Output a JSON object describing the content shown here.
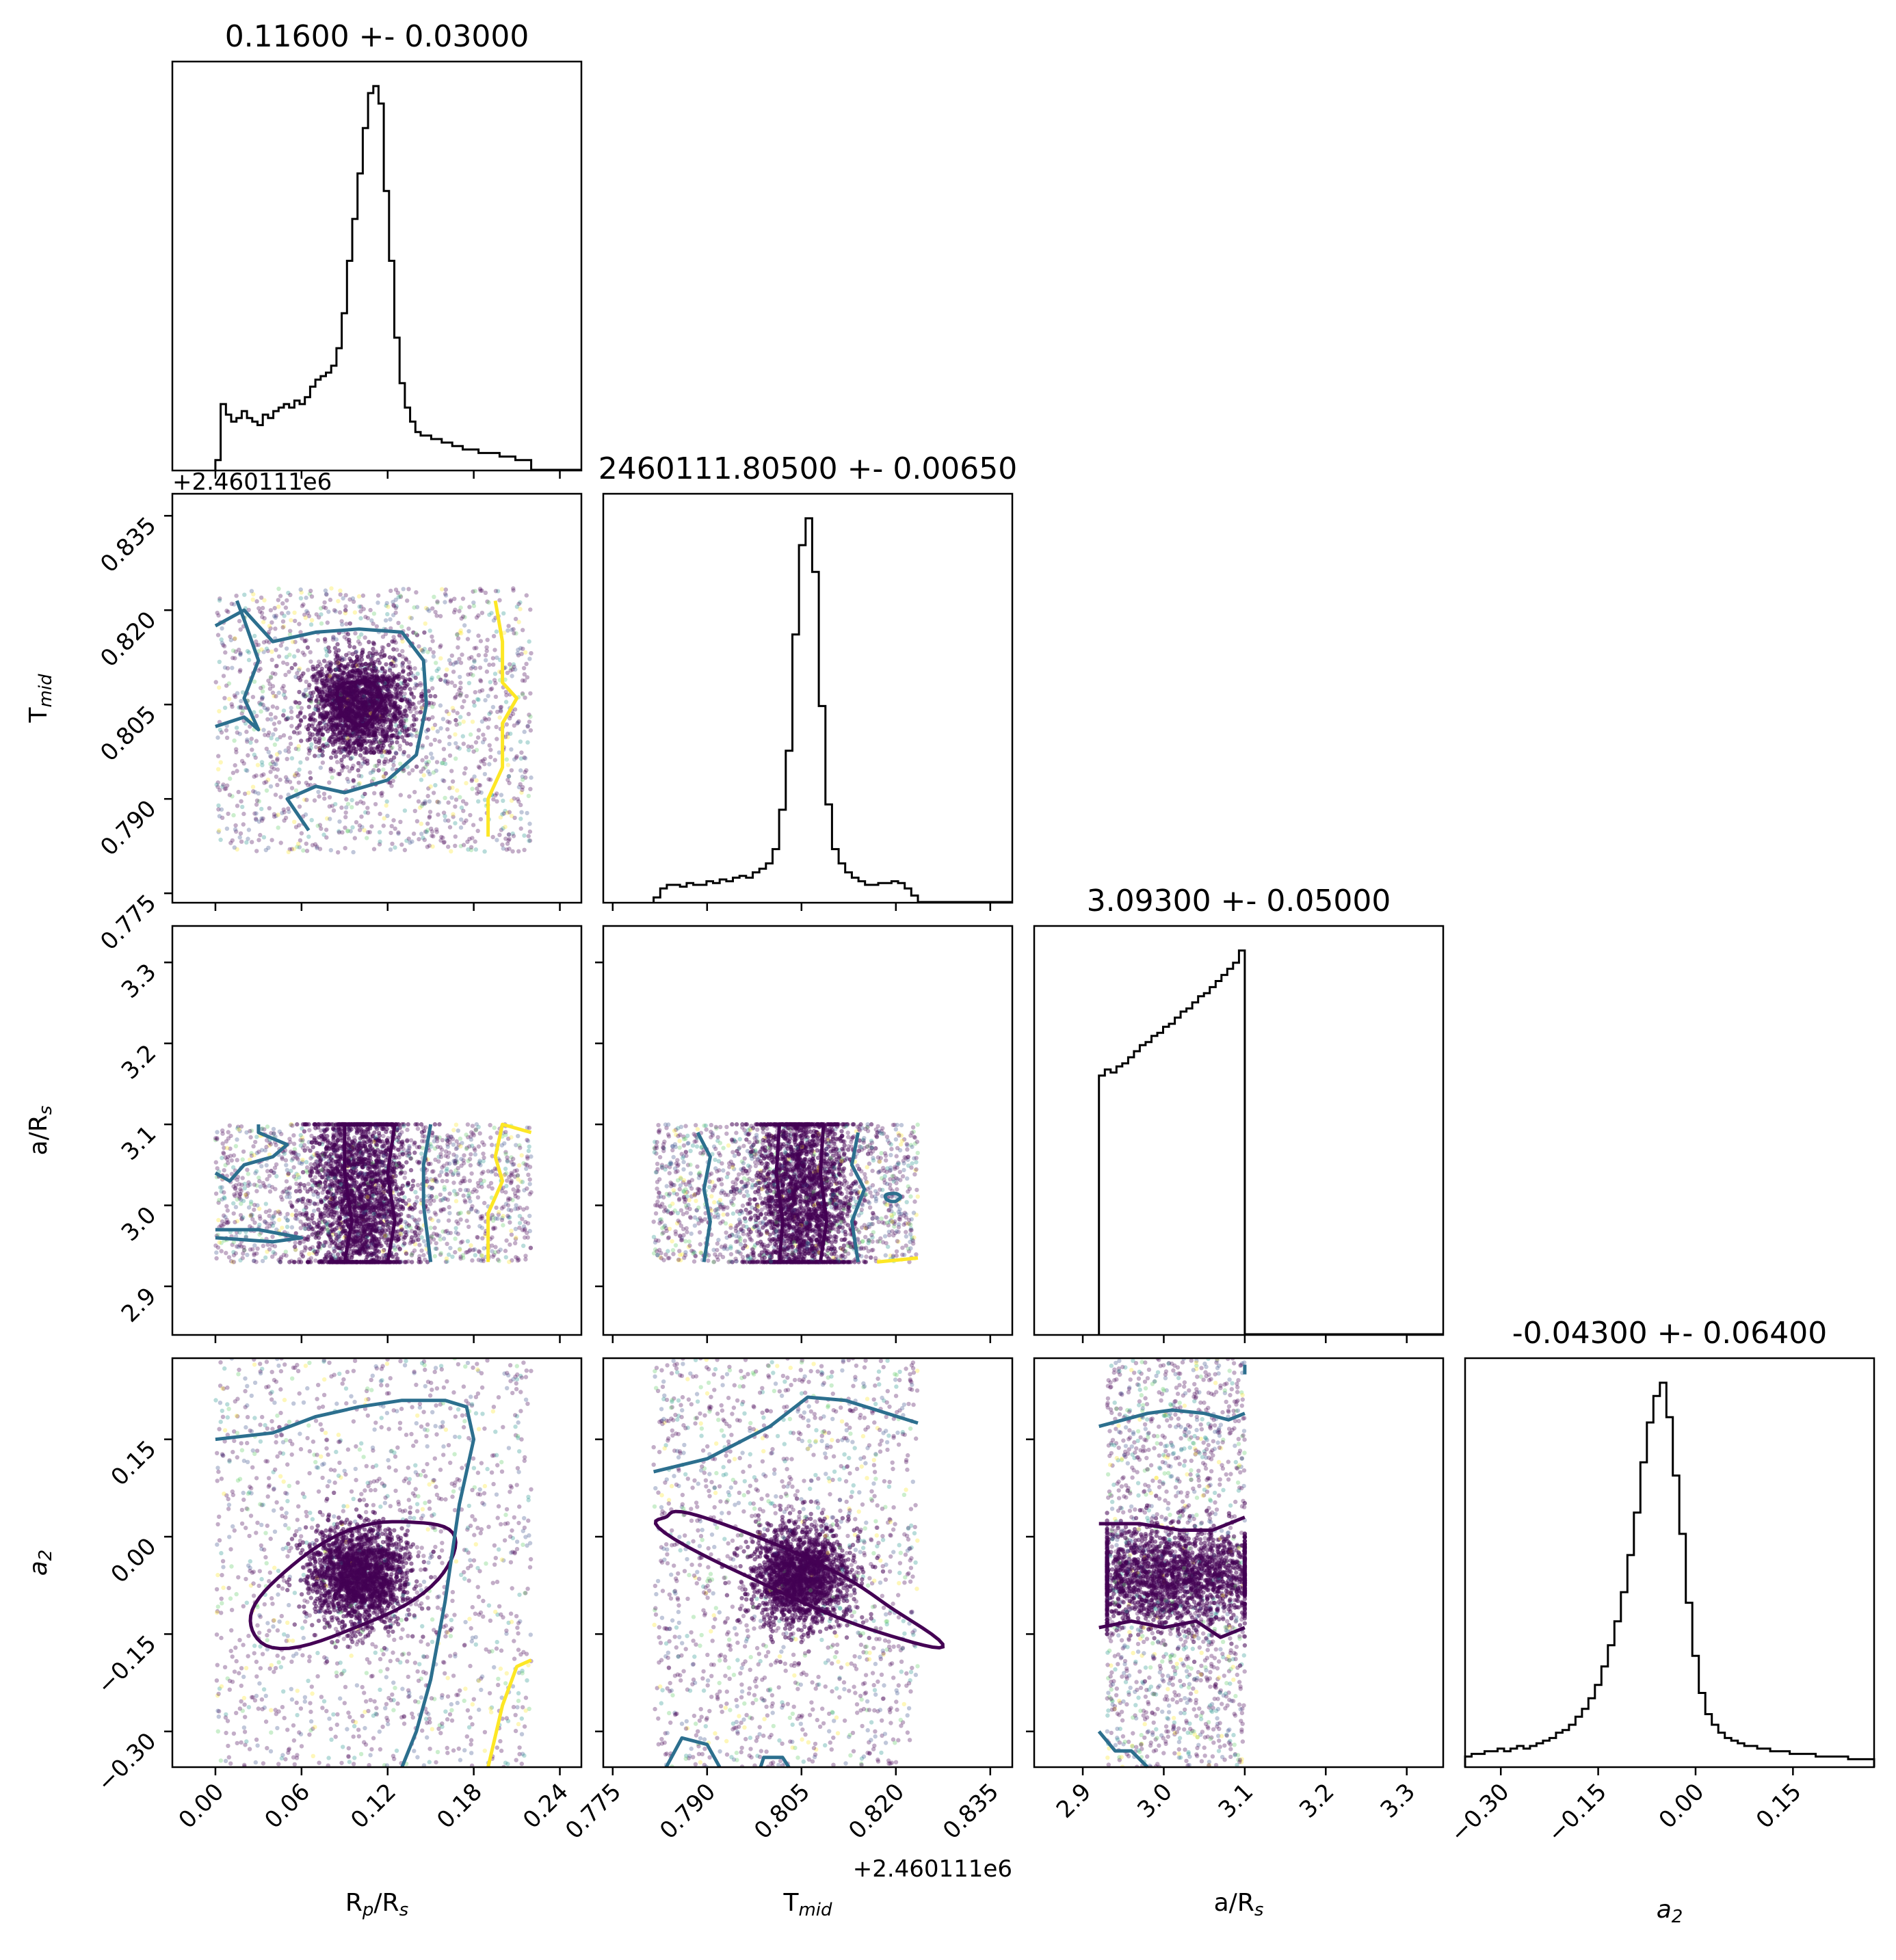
{
  "chart_data": {
    "type": "corner",
    "parameters": [
      {
        "key": "rp",
        "label": "R",
        "sub1": "p",
        "mid": "/R",
        "sub2": "s",
        "range": [
          -0.03,
          0.255
        ],
        "ticks": [
          "0.00",
          "0.06",
          "0.12",
          "0.18",
          "0.24"
        ],
        "tick_values": [
          0.0,
          0.06,
          0.12,
          0.18,
          0.24
        ]
      },
      {
        "key": "tmid",
        "label": "T",
        "sub1": "mid",
        "mid": "",
        "sub2": "",
        "range": [
          0.7735,
          0.8385
        ],
        "ticks": [
          "0.775",
          "0.790",
          "0.805",
          "0.820",
          "0.835"
        ],
        "tick_values": [
          0.775,
          0.79,
          0.805,
          0.82,
          0.835
        ],
        "offset": "+2.460111e6"
      },
      {
        "key": "ars",
        "label": "a/R",
        "sub1": "",
        "mid": "",
        "sub2": "s",
        "range": [
          2.84,
          3.345
        ],
        "ticks": [
          "2.9",
          "3.0",
          "3.1",
          "3.2",
          "3.3"
        ],
        "tick_values": [
          2.9,
          3.0,
          3.1,
          3.2,
          3.3
        ]
      },
      {
        "key": "a2",
        "label": "a",
        "sub1": "2",
        "mid": "",
        "sub2": "",
        "italic": true,
        "range": [
          -0.355,
          0.275
        ],
        "ticks": [
          "−0.30",
          "−0.15",
          "0.00",
          "0.15"
        ],
        "tick_values": [
          -0.3,
          -0.15,
          0.0,
          0.15
        ]
      }
    ],
    "titles": [
      "0.11600 +- 0.03000",
      "2460111.80500 +- 0.00650",
      "3.09300 +- 0.05000",
      "-0.04300 +- 0.06400"
    ],
    "histograms": [
      {
        "edges": [
          0.0,
          0.22
        ],
        "counts": [
          3,
          19,
          16,
          14,
          15,
          17,
          15,
          14,
          13,
          16,
          15,
          17,
          18,
          19,
          18,
          20,
          19,
          21,
          24,
          26,
          27,
          28,
          30,
          35,
          45,
          60,
          72,
          85,
          98,
          108,
          110,
          105,
          80,
          60,
          38,
          25,
          18,
          14,
          11,
          10,
          10,
          9,
          9,
          8,
          8,
          7,
          7,
          6,
          6,
          6,
          5,
          5,
          5,
          5,
          4,
          4,
          4,
          3,
          3,
          3
        ]
      },
      {
        "edges": [
          0.7815,
          0.8235
        ],
        "counts": [
          3,
          8,
          10,
          10,
          9,
          11,
          10,
          10,
          12,
          11,
          13,
          12,
          14,
          15,
          14,
          17,
          19,
          22,
          30,
          52,
          85,
          150,
          200,
          215,
          185,
          110,
          55,
          30,
          22,
          17,
          14,
          12,
          10,
          10,
          11,
          11,
          12,
          11,
          8,
          4
        ]
      },
      {
        "edges": [
          2.92,
          3.1
        ],
        "counts": [
          85,
          87,
          86,
          88,
          89,
          91,
          93,
          95,
          96,
          98,
          99,
          101,
          102,
          104,
          106,
          107,
          109,
          111,
          112,
          114,
          116,
          118,
          120,
          122,
          126
        ]
      },
      {
        "edges": [
          -0.355,
          0.275
        ],
        "counts": [
          4,
          5,
          5,
          6,
          6,
          7,
          6,
          7,
          8,
          7,
          8,
          9,
          10,
          11,
          13,
          14,
          16,
          19,
          22,
          26,
          31,
          38,
          46,
          55,
          66,
          80,
          96,
          115,
          130,
          140,
          145,
          132,
          110,
          88,
          62,
          42,
          28,
          20,
          16,
          13,
          11,
          10,
          9,
          8,
          8,
          7,
          7,
          6,
          6,
          6,
          5,
          5,
          5,
          5,
          4,
          4,
          4,
          4,
          4,
          3,
          3,
          3,
          3
        ]
      }
    ],
    "scatter_regions": {
      "rp": [
        0.0,
        0.22
      ],
      "tmid": [
        0.7815,
        0.8235
      ],
      "ars": [
        2.93,
        3.1
      ],
      "a2": [
        -0.355,
        0.275
      ]
    },
    "density_peaks": {
      "rp": 0.1,
      "tmid": 0.805,
      "ars": 3.01,
      "a2": -0.06
    }
  }
}
